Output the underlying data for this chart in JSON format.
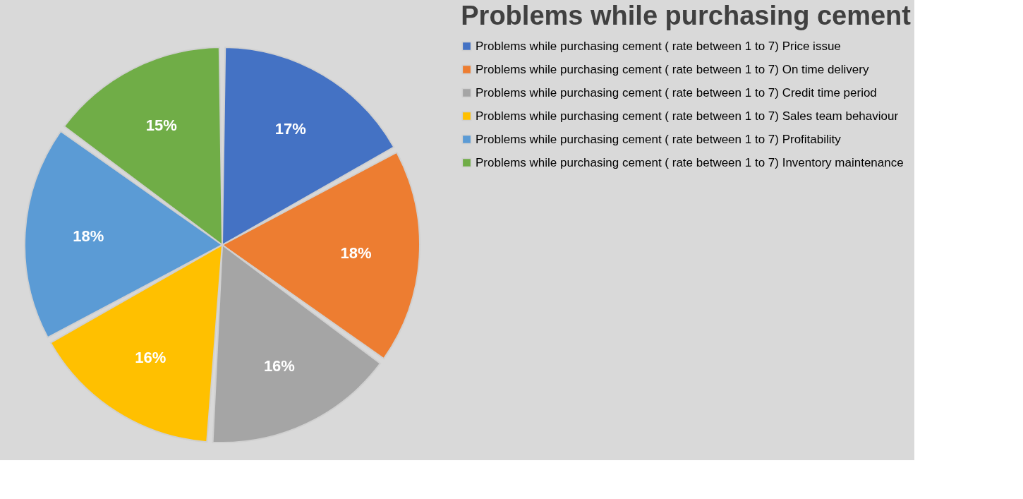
{
  "chart_data": {
    "type": "pie",
    "title": "Problems while purchasing cement",
    "categories": [
      "Problems while purchasing cement ( rate between 1 to 7) Price issue",
      "Problems while purchasing cement ( rate between 1 to 7) On time delivery",
      "Problems while purchasing cement ( rate between 1 to 7) Credit time period",
      "Problems while purchasing cement ( rate between 1 to 7) Sales team behaviour",
      "Problems while purchasing cement ( rate between 1 to 7) Profitability",
      "Problems while purchasing cement ( rate between 1 to 7) Inventory maintenance"
    ],
    "values": [
      17,
      18,
      16,
      16,
      18,
      15
    ],
    "colors": [
      "#4472c4",
      "#ed7d31",
      "#a5a5a5",
      "#ffc000",
      "#5b9bd5",
      "#70ad47"
    ],
    "value_labels": [
      "17%",
      "18%",
      "16%",
      "16%",
      "18%",
      "15%"
    ],
    "legend": "right"
  }
}
